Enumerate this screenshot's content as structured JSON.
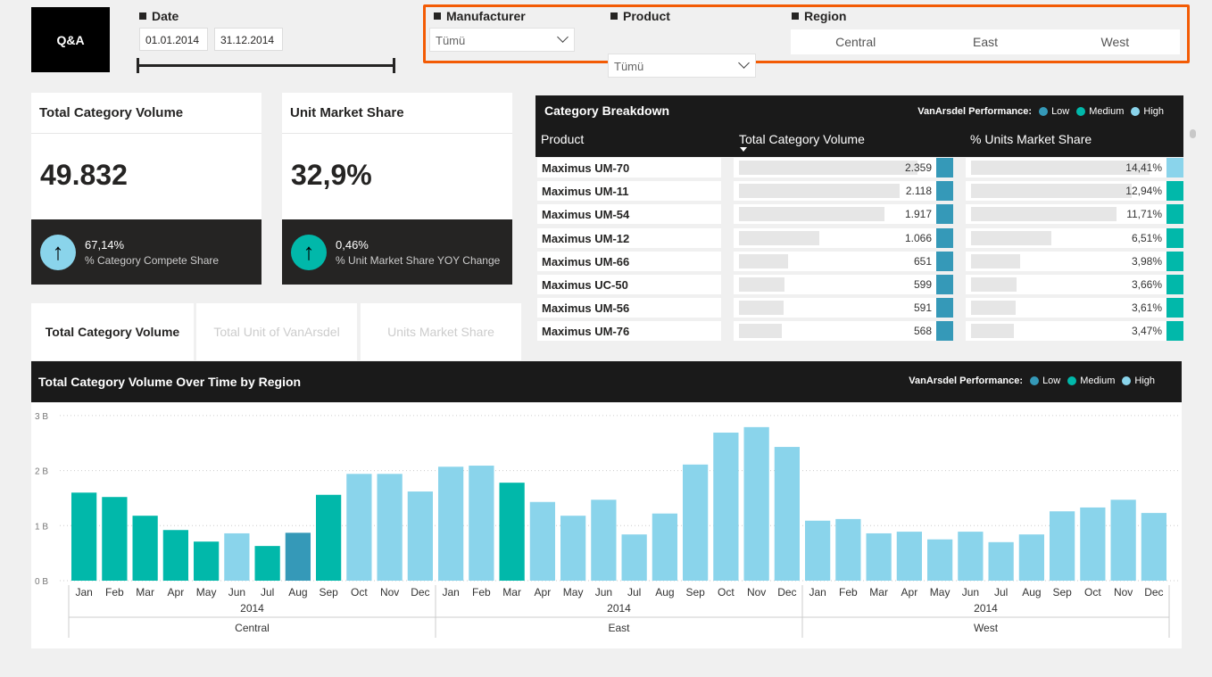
{
  "qa_button": "Q&A",
  "date": {
    "label": "Date",
    "start": "01.01.2014",
    "end": "31.12.2014"
  },
  "filters": {
    "manufacturer": {
      "label": "Manufacturer",
      "value": "Tümü"
    },
    "product": {
      "label": "Product",
      "value": "Tümü"
    },
    "region": {
      "label": "Region",
      "options": [
        "Central",
        "East",
        "West"
      ]
    }
  },
  "cards": [
    {
      "title": "Total Category Volume",
      "value": "49.832",
      "kpi": "67,14%",
      "kpi_label": "% Category Compete Share",
      "color": "#8AD4EB"
    },
    {
      "title": "Unit Market Share",
      "value": "32,9%",
      "kpi": "0,46%",
      "kpi_label": "% Unit Market Share YOY Change",
      "color": "#01B8AA"
    }
  ],
  "tabs": [
    "Total Category Volume",
    "Total Unit of VanArsdel",
    "Units Market Share"
  ],
  "legend": {
    "label": "VanArsdel Performance:",
    "items": [
      "Low",
      "Medium",
      "High"
    ]
  },
  "colors": {
    "low": "#3599B8",
    "medium": "#01B8AA",
    "high": "#8AD4EB"
  },
  "breakdown": {
    "title": "Category Breakdown",
    "columns": [
      "Product",
      "Total Category Volume",
      "% Units Market Share"
    ],
    "rows": [
      {
        "product": "Maximus UM-70",
        "volume": "2.359",
        "vol": 2359,
        "share": "14,41%",
        "sh": 14.41,
        "perf": "high"
      },
      {
        "product": "Maximus UM-11",
        "volume": "2.118",
        "vol": 2118,
        "share": "12,94%",
        "sh": 12.94,
        "perf": "medium"
      },
      {
        "product": "Maximus UM-54",
        "volume": "1.917",
        "vol": 1917,
        "share": "11,71%",
        "sh": 11.71,
        "perf": "medium"
      },
      {
        "product": "Maximus UM-12",
        "volume": "1.066",
        "vol": 1066,
        "share": "6,51%",
        "sh": 6.51,
        "perf": "medium"
      },
      {
        "product": "Maximus UM-66",
        "volume": "651",
        "vol": 651,
        "share": "3,98%",
        "sh": 3.98,
        "perf": "medium"
      },
      {
        "product": "Maximus UC-50",
        "volume": "599",
        "vol": 599,
        "share": "3,66%",
        "sh": 3.66,
        "perf": "medium"
      },
      {
        "product": "Maximus UM-56",
        "volume": "591",
        "vol": 591,
        "share": "3,61%",
        "sh": 3.61,
        "perf": "medium"
      },
      {
        "product": "Maximus UM-76",
        "volume": "568",
        "vol": 568,
        "share": "3,47%",
        "sh": 3.47,
        "perf": "medium"
      }
    ]
  },
  "chart_data": {
    "type": "bar",
    "title": "Total Category Volume Over Time by Region",
    "ylabel": "",
    "yticks": [
      "0 B",
      "1 B",
      "2 B",
      "3 B"
    ],
    "ylim": [
      0,
      3
    ],
    "unit": "B",
    "months": [
      "Jan",
      "Feb",
      "Mar",
      "Apr",
      "May",
      "Jun",
      "Jul",
      "Aug",
      "Sep",
      "Oct",
      "Nov",
      "Dec"
    ],
    "year": "2014",
    "series": [
      {
        "name": "Central",
        "values": [
          1.6,
          1.52,
          1.18,
          0.92,
          0.71,
          0.86,
          0.63,
          0.87,
          1.56,
          1.94,
          1.94,
          1.62
        ],
        "perf": [
          "medium",
          "medium",
          "medium",
          "medium",
          "medium",
          "high",
          "medium",
          "low",
          "medium",
          "high",
          "high",
          "high"
        ]
      },
      {
        "name": "East",
        "values": [
          2.07,
          2.09,
          1.78,
          1.43,
          1.18,
          1.47,
          0.84,
          1.22,
          2.11,
          2.69,
          2.79,
          2.43
        ],
        "perf": [
          "high",
          "high",
          "medium",
          "high",
          "high",
          "high",
          "high",
          "high",
          "high",
          "high",
          "high",
          "high"
        ]
      },
      {
        "name": "West",
        "values": [
          1.09,
          1.12,
          0.86,
          0.89,
          0.75,
          0.89,
          0.7,
          0.84,
          1.26,
          1.33,
          1.47,
          1.23
        ],
        "perf": [
          "high",
          "high",
          "high",
          "high",
          "high",
          "high",
          "high",
          "high",
          "high",
          "high",
          "high",
          "high"
        ]
      }
    ]
  }
}
